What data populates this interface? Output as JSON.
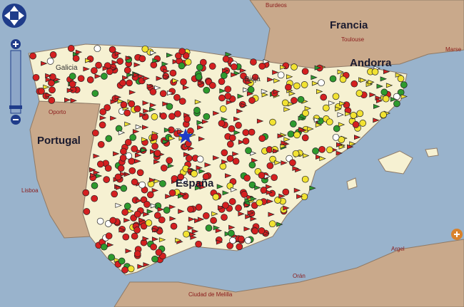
{
  "map": {
    "labels": [
      "Burdeos",
      "Francia",
      "Toulouse",
      "Andorra",
      "Marse",
      "Galicia",
      "Oporto",
      "Portugal",
      "Lisboa",
      "Rioja",
      "España",
      "Argel",
      "Orán",
      "Ciudad de Melilla"
    ]
  }
}
